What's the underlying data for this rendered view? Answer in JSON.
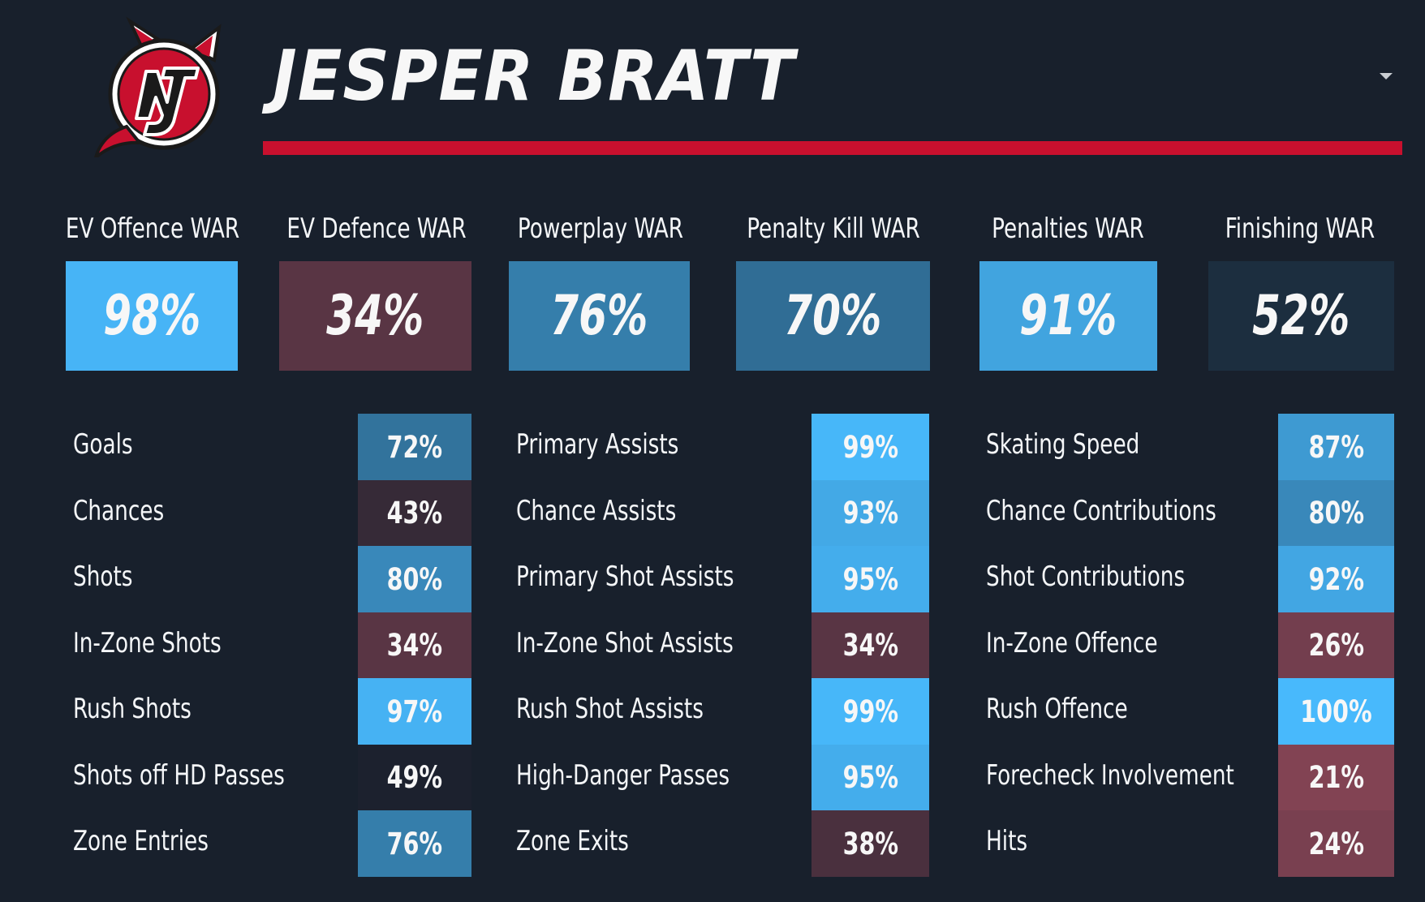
{
  "header": {
    "player_name": "JESPER BRATT",
    "accent_color": "#c8102e",
    "logo": "new-jersey-devils-logo"
  },
  "colors": {
    "background": "#18202c",
    "scale": "diverging: maroon (low) -> navy (50%) -> light blue (high)"
  },
  "war": [
    {
      "label": "EV Offence WAR",
      "value": "98%",
      "pct": 98
    },
    {
      "label": "EV Defence WAR",
      "value": "34%",
      "pct": 34
    },
    {
      "label": "Powerplay WAR",
      "value": "76%",
      "pct": 76
    },
    {
      "label": "Penalty Kill WAR",
      "value": "70%",
      "pct": 70
    },
    {
      "label": "Penalties WAR",
      "value": "91%",
      "pct": 91
    },
    {
      "label": "Finishing WAR",
      "value": "52%",
      "pct": 52
    }
  ],
  "stats": [
    [
      {
        "label": "Goals",
        "value": "72%",
        "pct": 72
      },
      {
        "label": "Chances",
        "value": "43%",
        "pct": 43
      },
      {
        "label": "Shots",
        "value": "80%",
        "pct": 80
      },
      {
        "label": "In-Zone Shots",
        "value": "34%",
        "pct": 34
      },
      {
        "label": "Rush Shots",
        "value": "97%",
        "pct": 97
      },
      {
        "label": "Shots off HD Passes",
        "value": "49%",
        "pct": 49
      },
      {
        "label": "Zone Entries",
        "value": "76%",
        "pct": 76
      }
    ],
    [
      {
        "label": "Primary Assists",
        "value": "99%",
        "pct": 99
      },
      {
        "label": "Chance Assists",
        "value": "93%",
        "pct": 93
      },
      {
        "label": "Primary Shot Assists",
        "value": "95%",
        "pct": 95
      },
      {
        "label": "In-Zone Shot Assists",
        "value": "34%",
        "pct": 34
      },
      {
        "label": "Rush Shot Assists",
        "value": "99%",
        "pct": 99
      },
      {
        "label": "High-Danger Passes",
        "value": "95%",
        "pct": 95
      },
      {
        "label": "Zone Exits",
        "value": "38%",
        "pct": 38
      }
    ],
    [
      {
        "label": "Skating Speed",
        "value": "87%",
        "pct": 87
      },
      {
        "label": "Chance Contributions",
        "value": "80%",
        "pct": 80
      },
      {
        "label": "Shot Contributions",
        "value": "92%",
        "pct": 92
      },
      {
        "label": "In-Zone Offence",
        "value": "26%",
        "pct": 26
      },
      {
        "label": "Rush Offence",
        "value": "100%",
        "pct": 100
      },
      {
        "label": "Forecheck Involvement",
        "value": "21%",
        "pct": 21
      },
      {
        "label": "Hits",
        "value": "24%",
        "pct": 24
      }
    ]
  ]
}
